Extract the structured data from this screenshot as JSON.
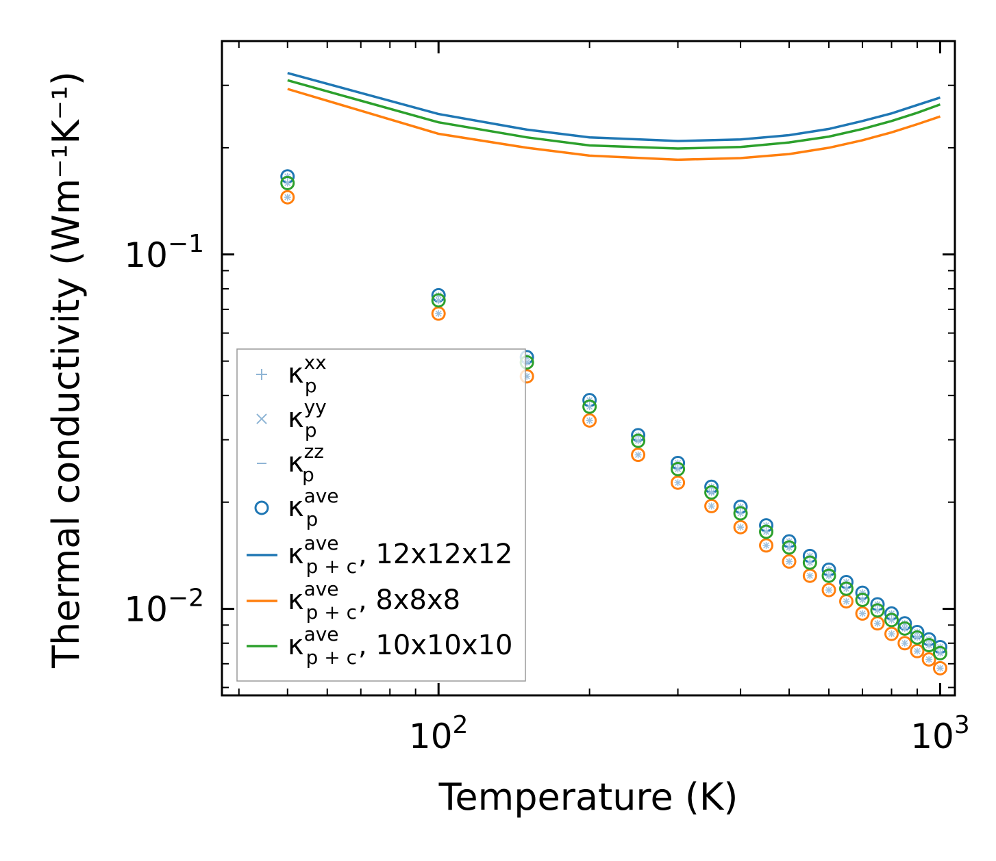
{
  "chart_data": {
    "type": "scatter",
    "xscale": "log",
    "yscale": "log",
    "xlabel": "Temperature (K)",
    "ylabel": "Thermal conductivity (Wm⁻¹K⁻¹)",
    "xlim": [
      37,
      1070
    ],
    "ylim": [
      0.0057,
      0.4
    ],
    "x_tick_labels": [
      {
        "value": 100,
        "base": "10",
        "exp": "2"
      },
      {
        "value": 1000,
        "base": "10",
        "exp": "3"
      }
    ],
    "y_tick_labels": [
      {
        "value": 0.1,
        "base": "10",
        "exp": "−1"
      },
      {
        "value": 0.01,
        "base": "10",
        "exp": "−2"
      }
    ],
    "x": [
      50,
      100,
      150,
      200,
      250,
      300,
      350,
      400,
      450,
      500,
      550,
      600,
      650,
      700,
      750,
      800,
      850,
      900,
      950,
      1000
    ],
    "series": [
      {
        "name": "κ_p^ave (12x12x12)",
        "kind": "scatter",
        "color": "#1f77b4",
        "values": [
          0.166,
          0.0767,
          0.0513,
          0.0388,
          0.0309,
          0.0258,
          0.0221,
          0.0194,
          0.0172,
          0.0155,
          0.0141,
          0.0129,
          0.0119,
          0.0111,
          0.0103,
          0.0097,
          0.0091,
          0.0086,
          0.0082,
          0.0078
        ]
      },
      {
        "name": "κ_p^ave (8x8x8)",
        "kind": "scatter",
        "color": "#ff7f0e",
        "values": [
          0.145,
          0.0681,
          0.0453,
          0.034,
          0.0272,
          0.0227,
          0.0195,
          0.017,
          0.0151,
          0.0136,
          0.0124,
          0.0113,
          0.0105,
          0.0097,
          0.0091,
          0.0085,
          0.008,
          0.0076,
          0.0072,
          0.0068
        ]
      },
      {
        "name": "κ_p^ave (10x10x10)",
        "kind": "scatter",
        "color": "#2ca02c",
        "values": [
          0.159,
          0.0742,
          0.0496,
          0.0372,
          0.0298,
          0.0248,
          0.0213,
          0.0186,
          0.0165,
          0.0149,
          0.0135,
          0.0124,
          0.0114,
          0.0106,
          0.0099,
          0.0093,
          0.0088,
          0.0083,
          0.0079,
          0.0075
        ]
      },
      {
        "name": "κ_p+c^ave, 12x12x12",
        "kind": "line",
        "color": "#1f77b4",
        "x": [
          50,
          100,
          150,
          200,
          300,
          400,
          500,
          600,
          700,
          800,
          900,
          1000
        ],
        "values": [
          0.325,
          0.249,
          0.225,
          0.214,
          0.209,
          0.211,
          0.217,
          0.226,
          0.238,
          0.25,
          0.264,
          0.277
        ]
      },
      {
        "name": "κ_p+c^ave, 8x8x8",
        "kind": "line",
        "color": "#ff7f0e",
        "x": [
          50,
          100,
          150,
          200,
          300,
          400,
          500,
          600,
          700,
          800,
          900,
          1000
        ],
        "values": [
          0.293,
          0.219,
          0.2,
          0.19,
          0.185,
          0.187,
          0.192,
          0.2,
          0.21,
          0.221,
          0.233,
          0.245
        ]
      },
      {
        "name": "κ_p+c^ave, 10x10x10",
        "kind": "line",
        "color": "#2ca02c",
        "x": [
          50,
          100,
          150,
          200,
          300,
          400,
          500,
          600,
          700,
          800,
          900,
          1000
        ],
        "values": [
          0.31,
          0.236,
          0.214,
          0.203,
          0.199,
          0.201,
          0.207,
          0.215,
          0.226,
          0.238,
          0.251,
          0.265
        ]
      }
    ],
    "legend": {
      "position": "lower-left",
      "entries": [
        {
          "marker": "plus",
          "color": "#8fb5d5",
          "sym": "κ",
          "sub": "p",
          "sup": "xx",
          "suffix": ""
        },
        {
          "marker": "cross",
          "color": "#8fb5d5",
          "sym": "κ",
          "sub": "p",
          "sup": "yy",
          "suffix": ""
        },
        {
          "marker": "dash",
          "color": "#8fb5d5",
          "sym": "κ",
          "sub": "p",
          "sup": "zz",
          "suffix": ""
        },
        {
          "marker": "circle",
          "color": "#1f77b4",
          "sym": "κ",
          "sub": "p",
          "sup": "ave",
          "suffix": ""
        },
        {
          "marker": "line",
          "color": "#1f77b4",
          "sym": "κ",
          "sub": "p + c",
          "sup": "ave",
          "suffix": ", 12x12x12"
        },
        {
          "marker": "line",
          "color": "#ff7f0e",
          "sym": "κ",
          "sub": "p + c",
          "sup": "ave",
          "suffix": ", 8x8x8"
        },
        {
          "marker": "line",
          "color": "#2ca02c",
          "sym": "κ",
          "sub": "p + c",
          "sup": "ave",
          "suffix": ", 10x10x10"
        }
      ]
    }
  }
}
